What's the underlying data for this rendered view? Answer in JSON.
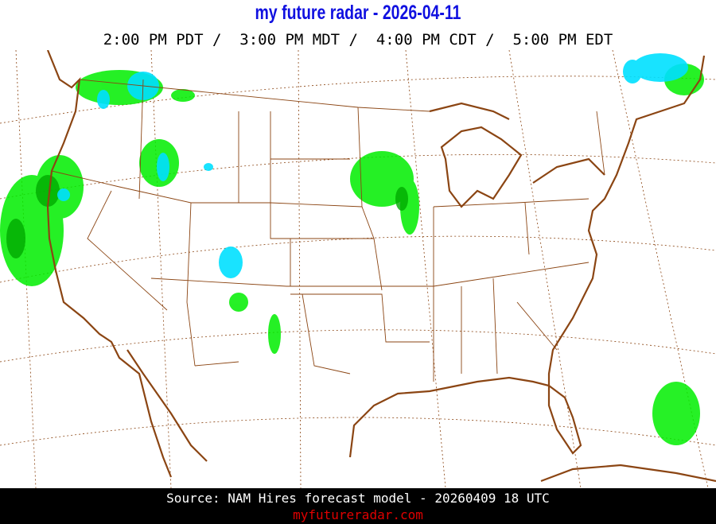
{
  "header": {
    "title": "my future radar - 2026-04-11",
    "times": "2:00 PM PDT /  3:00 PM MDT /  4:00 PM CDT /  5:00 PM EDT"
  },
  "map": {
    "region": "Continental United States",
    "layer": "forecast radar reflectivity",
    "colors": {
      "border": "#8b4513",
      "light_rain": "#00ee00",
      "heavy_rain": "#00aa00",
      "snow": "#00e0ff",
      "graticule": "#8b4513"
    }
  },
  "footer": {
    "source": "Source: NAM Hires forecast model - 20260409 18 UTC",
    "site": "myfutureradar.com"
  }
}
